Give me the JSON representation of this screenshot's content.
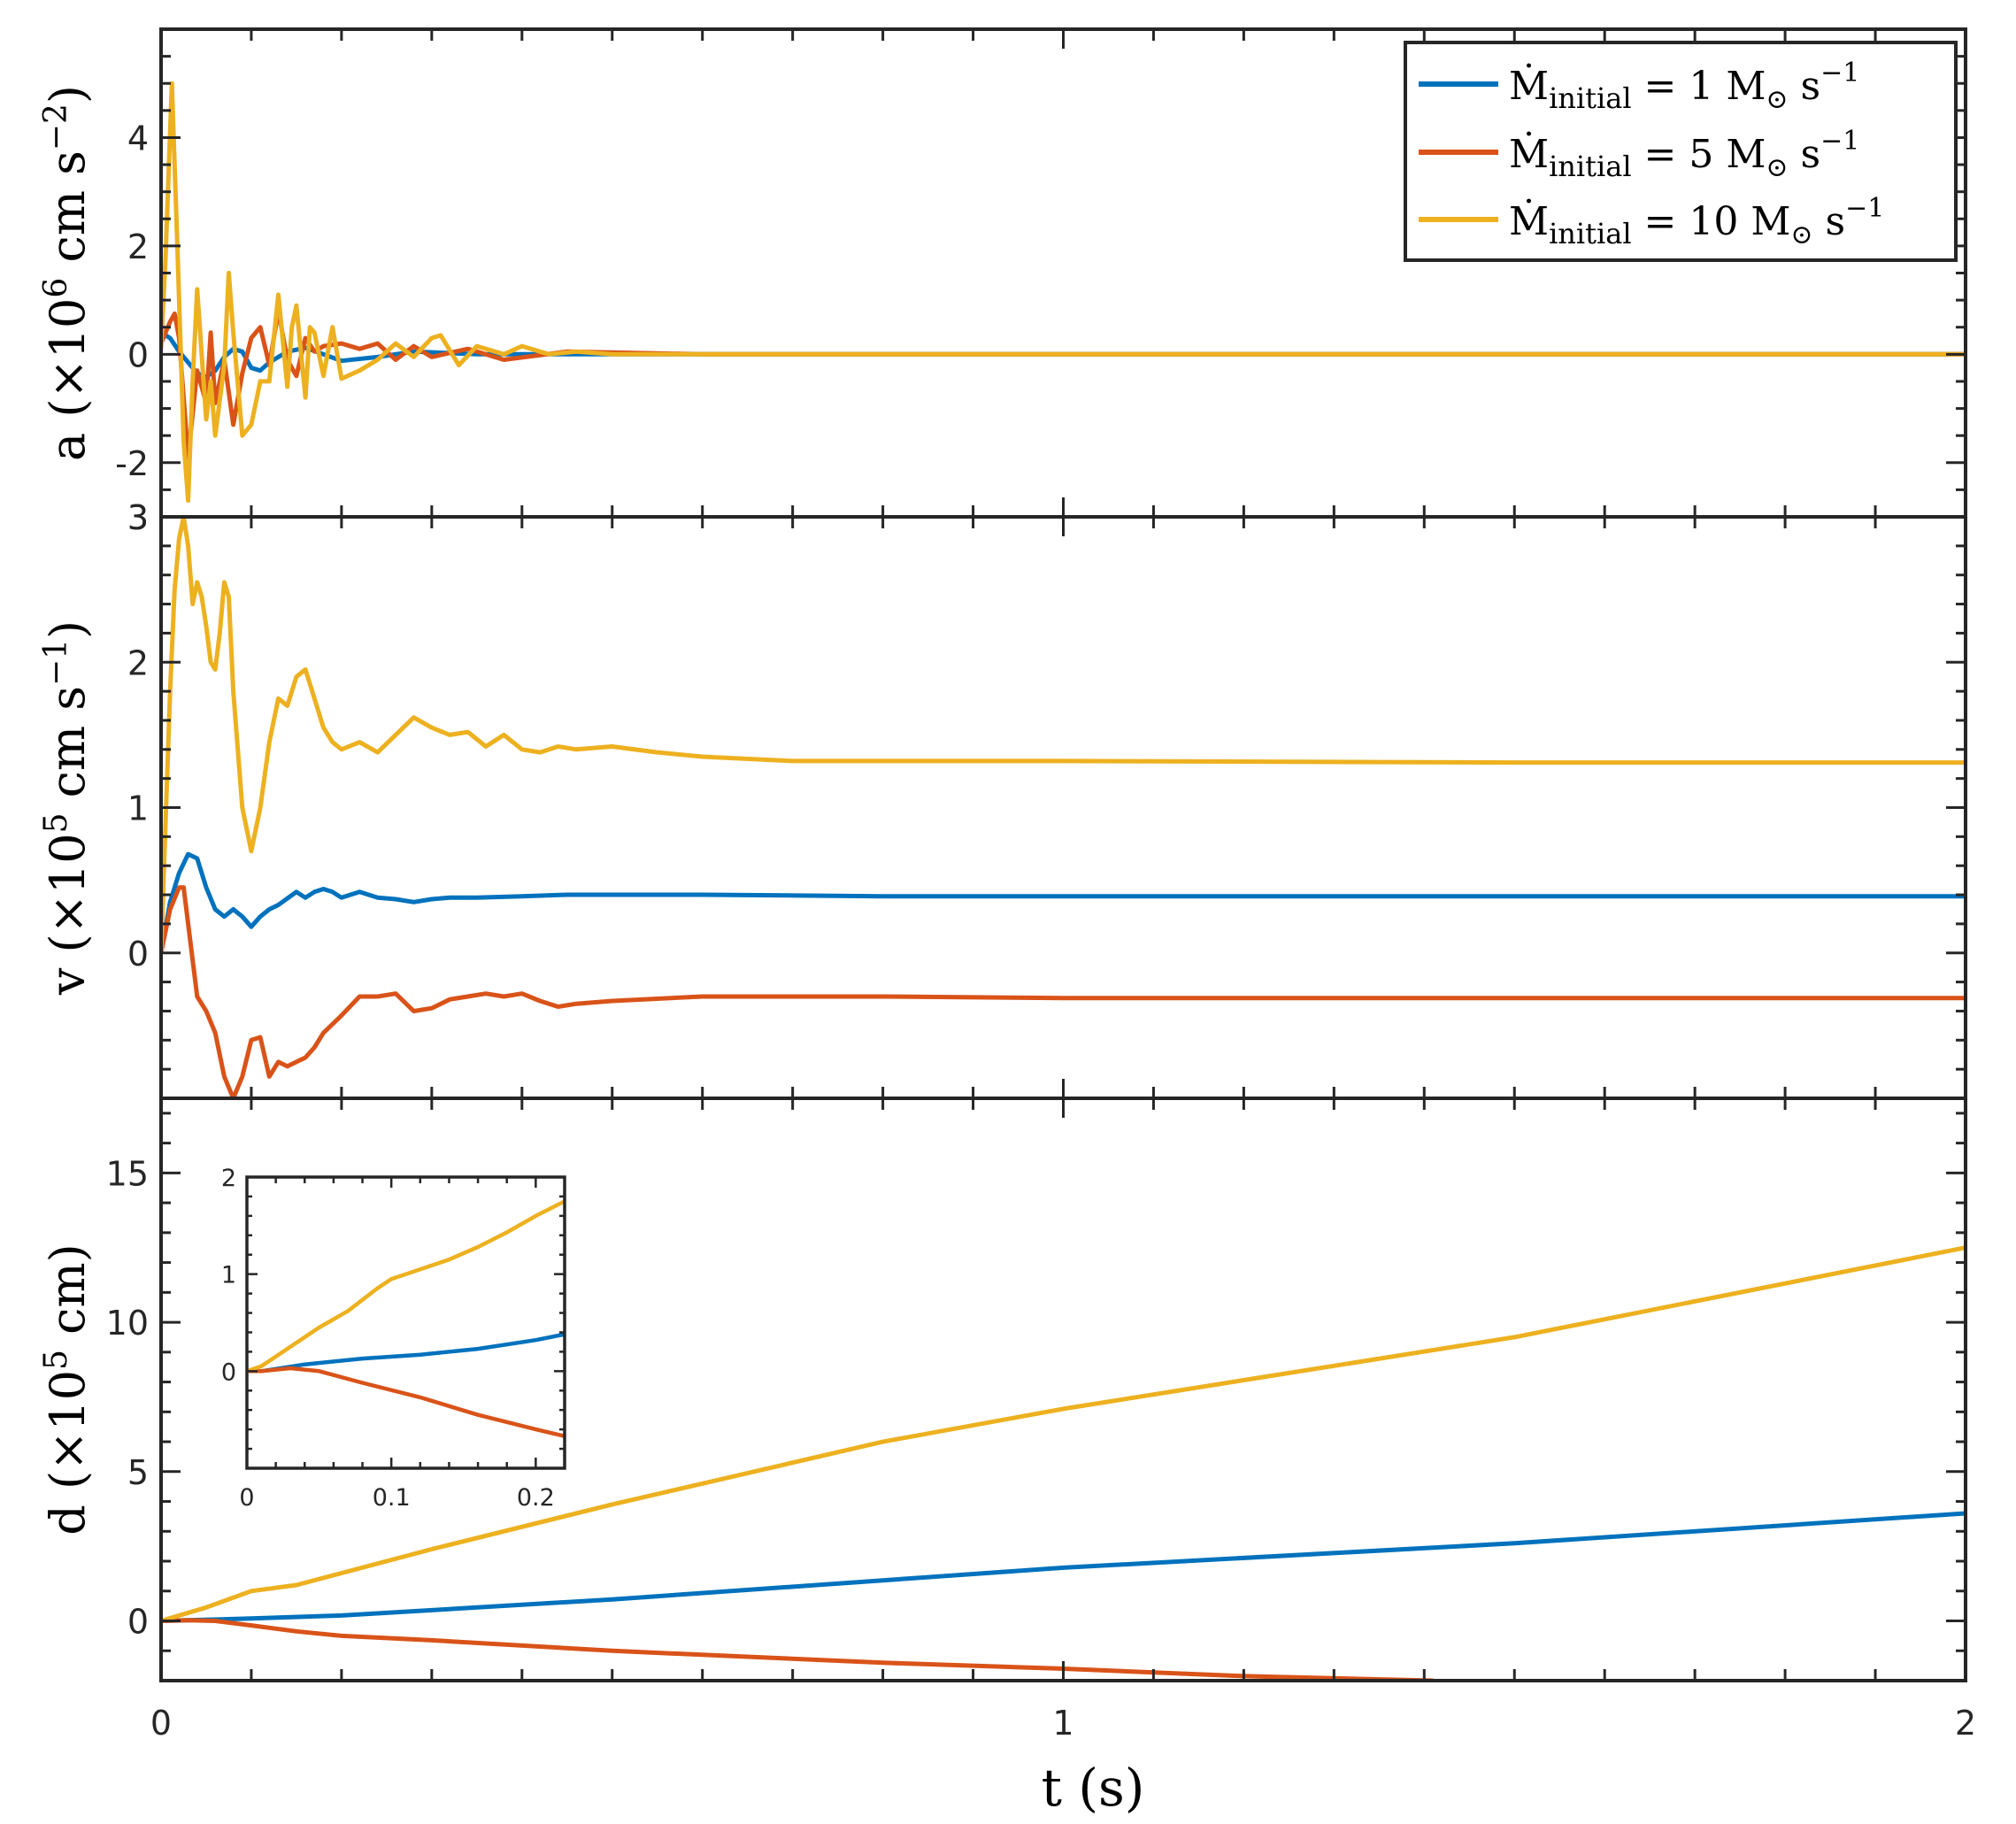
{
  "chart_data": {
    "type": "line",
    "xlabel": "t (s)",
    "xlim": [
      0,
      2
    ],
    "xticks": [
      0,
      1,
      2
    ],
    "x_tick_labels": [
      "0",
      "1",
      "2"
    ],
    "legend": {
      "placement": "top-right of top panel",
      "entries": [
        {
          "prefix": "Ṁ",
          "sub": "initial",
          "text": " = 1 M",
          "sun": "⊙",
          "unit": " s",
          "sup": "−1"
        },
        {
          "prefix": "Ṁ",
          "sub": "initial",
          "text": " = 5 M",
          "sun": "⊙",
          "unit": " s",
          "sup": "−1"
        },
        {
          "prefix": "Ṁ",
          "sub": "initial",
          "text": " = 10 M",
          "sun": "⊙",
          "unit": " s",
          "sup": "−1"
        }
      ]
    },
    "colors": {
      "blue": "#0072BD",
      "red": "#D95319",
      "yellow": "#EDB120",
      "axis": "#262626"
    },
    "panels": [
      {
        "id": "acceleration",
        "ylabel_parts": {
          "pre": "a (×10",
          "sup1": "6",
          "mid": " cm s",
          "sup2": "−2",
          "post": ")"
        },
        "ylim": [
          -3,
          6
        ],
        "yticks": [
          -2,
          0,
          2,
          4
        ],
        "y_tick_labels": [
          "-2",
          "0",
          "2",
          "4"
        ],
        "extra_label": "3",
        "series": [
          {
            "name": "Ṁinitial = 1 M⊙ s−1",
            "color": "#0072BD",
            "x": [
              0,
              0.01,
              0.02,
              0.03,
              0.04,
              0.05,
              0.06,
              0.07,
              0.08,
              0.09,
              0.1,
              0.11,
              0.12,
              0.14,
              0.16,
              0.18,
              0.2,
              0.24,
              0.28,
              0.35,
              0.5,
              1.0,
              2.0
            ],
            "y": [
              0.4,
              0.3,
              0.05,
              -0.15,
              -0.35,
              -0.42,
              -0.3,
              -0.05,
              0.1,
              0.05,
              -0.25,
              -0.3,
              -0.15,
              0.05,
              0.12,
              0.0,
              -0.12,
              -0.05,
              0.05,
              0.0,
              0.0,
              0.0,
              0.0
            ]
          },
          {
            "name": "Ṁinitial = 5 M⊙ s−1",
            "color": "#D95319",
            "x": [
              0,
              0.01,
              0.015,
              0.02,
              0.03,
              0.04,
              0.05,
              0.055,
              0.06,
              0.07,
              0.08,
              0.09,
              0.1,
              0.11,
              0.12,
              0.13,
              0.14,
              0.15,
              0.16,
              0.17,
              0.18,
              0.2,
              0.22,
              0.24,
              0.26,
              0.28,
              0.3,
              0.34,
              0.38,
              0.45,
              0.6,
              1.0,
              2.0
            ],
            "y": [
              0.2,
              0.6,
              0.75,
              0.3,
              -1.9,
              -0.3,
              -0.9,
              0.4,
              -0.9,
              -0.1,
              -1.3,
              -0.35,
              0.3,
              0.5,
              -0.2,
              0.8,
              -0.1,
              -0.4,
              0.3,
              0.05,
              0.15,
              0.2,
              0.1,
              0.2,
              -0.1,
              0.15,
              -0.05,
              0.1,
              -0.1,
              0.05,
              0.0,
              0.0,
              0.0
            ]
          },
          {
            "name": "Ṁinitial = 10 M⊙ s−1",
            "color": "#EDB120",
            "x": [
              0,
              0.005,
              0.012,
              0.018,
              0.025,
              0.03,
              0.035,
              0.04,
              0.05,
              0.055,
              0.06,
              0.07,
              0.075,
              0.08,
              0.09,
              0.1,
              0.11,
              0.12,
              0.13,
              0.14,
              0.145,
              0.15,
              0.16,
              0.165,
              0.17,
              0.18,
              0.19,
              0.2,
              0.22,
              0.24,
              0.26,
              0.28,
              0.3,
              0.31,
              0.33,
              0.35,
              0.38,
              0.4,
              0.43,
              0.46,
              0.5,
              0.6,
              1.0,
              2.0
            ],
            "y": [
              0.1,
              1.8,
              5.0,
              2.0,
              -1.6,
              -2.7,
              -0.5,
              1.2,
              -1.2,
              -0.5,
              -1.5,
              -0.2,
              1.5,
              0.4,
              -1.5,
              -1.3,
              -0.5,
              -0.5,
              1.1,
              -0.6,
              0.5,
              0.9,
              -0.8,
              0.5,
              0.4,
              -0.4,
              0.5,
              -0.45,
              -0.3,
              -0.1,
              0.2,
              -0.05,
              0.3,
              0.35,
              -0.2,
              0.15,
              0.0,
              0.15,
              0.0,
              0.05,
              0.0,
              0.0,
              0.0,
              0.0
            ]
          }
        ]
      },
      {
        "id": "velocity",
        "ylabel_parts": {
          "pre": "v (×10",
          "sup1": "5",
          "mid": " cm s",
          "sup2": "−1",
          "post": ")"
        },
        "ylim": [
          -1,
          3
        ],
        "yticks": [
          0,
          1,
          2,
          3
        ],
        "y_tick_labels": [
          "0",
          "1",
          "2",
          "3"
        ],
        "series": [
          {
            "name": "Ṁinitial = 1 M⊙ s−1",
            "color": "#0072BD",
            "x": [
              0,
              0.01,
              0.02,
              0.03,
              0.04,
              0.05,
              0.06,
              0.07,
              0.08,
              0.09,
              0.1,
              0.11,
              0.12,
              0.13,
              0.15,
              0.16,
              0.17,
              0.18,
              0.19,
              0.2,
              0.22,
              0.24,
              0.26,
              0.28,
              0.3,
              0.32,
              0.35,
              0.4,
              0.45,
              0.5,
              0.6,
              0.8,
              1.0,
              1.5,
              2.0
            ],
            "y": [
              0,
              0.35,
              0.55,
              0.68,
              0.65,
              0.45,
              0.3,
              0.25,
              0.3,
              0.25,
              0.18,
              0.25,
              0.3,
              0.33,
              0.42,
              0.38,
              0.42,
              0.44,
              0.42,
              0.38,
              0.42,
              0.38,
              0.37,
              0.35,
              0.37,
              0.38,
              0.38,
              0.39,
              0.4,
              0.4,
              0.4,
              0.39,
              0.39,
              0.39,
              0.39
            ]
          },
          {
            "name": "Ṁinitial = 5 M⊙ s−1",
            "color": "#D95319",
            "x": [
              0,
              0.01,
              0.02,
              0.025,
              0.03,
              0.04,
              0.05,
              0.06,
              0.07,
              0.08,
              0.09,
              0.1,
              0.11,
              0.12,
              0.13,
              0.14,
              0.15,
              0.16,
              0.17,
              0.18,
              0.2,
              0.22,
              0.24,
              0.26,
              0.28,
              0.3,
              0.32,
              0.34,
              0.36,
              0.38,
              0.4,
              0.42,
              0.44,
              0.46,
              0.5,
              0.6,
              0.8,
              1.0,
              1.5,
              2.0
            ],
            "y": [
              0,
              0.3,
              0.45,
              0.45,
              0.2,
              -0.3,
              -0.4,
              -0.55,
              -0.85,
              -1.0,
              -0.85,
              -0.6,
              -0.58,
              -0.85,
              -0.75,
              -0.78,
              -0.75,
              -0.72,
              -0.65,
              -0.55,
              -0.43,
              -0.3,
              -0.3,
              -0.28,
              -0.4,
              -0.38,
              -0.32,
              -0.3,
              -0.28,
              -0.3,
              -0.28,
              -0.33,
              -0.37,
              -0.35,
              -0.33,
              -0.3,
              -0.3,
              -0.31,
              -0.31,
              -0.31
            ]
          },
          {
            "name": "Ṁinitial = 10 M⊙ s−1",
            "color": "#EDB120",
            "x": [
              0,
              0.005,
              0.01,
              0.015,
              0.02,
              0.025,
              0.03,
              0.035,
              0.04,
              0.045,
              0.05,
              0.055,
              0.06,
              0.065,
              0.07,
              0.075,
              0.08,
              0.09,
              0.1,
              0.11,
              0.12,
              0.13,
              0.14,
              0.15,
              0.16,
              0.17,
              0.18,
              0.19,
              0.2,
              0.22,
              0.24,
              0.26,
              0.28,
              0.3,
              0.32,
              0.34,
              0.36,
              0.38,
              0.4,
              0.42,
              0.44,
              0.46,
              0.5,
              0.55,
              0.6,
              0.7,
              0.8,
              1.0,
              1.5,
              2.0
            ],
            "y": [
              0,
              0.9,
              1.8,
              2.5,
              2.85,
              3.0,
              2.8,
              2.4,
              2.55,
              2.45,
              2.25,
              2.0,
              1.95,
              2.2,
              2.55,
              2.45,
              1.8,
              1.0,
              0.7,
              1.0,
              1.45,
              1.75,
              1.7,
              1.9,
              1.95,
              1.75,
              1.55,
              1.45,
              1.4,
              1.45,
              1.38,
              1.5,
              1.62,
              1.55,
              1.5,
              1.52,
              1.42,
              1.5,
              1.4,
              1.38,
              1.42,
              1.4,
              1.42,
              1.38,
              1.35,
              1.32,
              1.32,
              1.32,
              1.31,
              1.31
            ]
          }
        ]
      },
      {
        "id": "displacement",
        "ylabel_parts": {
          "pre": "d (×10",
          "sup1": "5",
          "mid": " cm",
          "sup2": "",
          "post": ")"
        },
        "ylim": [
          -2,
          17.5
        ],
        "yticks": [
          0,
          5,
          10,
          15
        ],
        "y_tick_labels": [
          "0",
          "5",
          "10",
          "15"
        ],
        "series": [
          {
            "name": "Ṁinitial = 1 M⊙ s−1",
            "color": "#0072BD",
            "x": [
              0,
              0.1,
              0.2,
              0.5,
              1.0,
              1.5,
              2.0
            ],
            "y": [
              0,
              0.08,
              0.18,
              0.72,
              1.78,
              2.6,
              3.6
            ]
          },
          {
            "name": "Ṁinitial = 5 M⊙ s−1",
            "color": "#D95319",
            "x": [
              0,
              0.03,
              0.06,
              0.1,
              0.15,
              0.2,
              0.3,
              0.5,
              0.8,
              1.0,
              1.2,
              1.41
            ],
            "y": [
              0,
              0.02,
              0.0,
              -0.15,
              -0.35,
              -0.5,
              -0.65,
              -1.0,
              -1.4,
              -1.6,
              -1.85,
              -2.0
            ]
          },
          {
            "name": "Ṁinitial = 10 M⊙ s−1",
            "color": "#EDB120",
            "x": [
              0,
              0.05,
              0.1,
              0.15,
              0.2,
              0.3,
              0.5,
              0.8,
              1.0,
              1.5,
              2.0
            ],
            "y": [
              0,
              0.45,
              1.0,
              1.2,
              1.6,
              2.4,
              3.9,
              6.0,
              7.1,
              9.5,
              12.5
            ]
          }
        ],
        "inset": {
          "xlim": [
            0,
            0.22
          ],
          "ylim": [
            -1,
            2
          ],
          "xticks": [
            0,
            0.1,
            0.2
          ],
          "x_tick_labels": [
            "0",
            "0.1",
            "0.2"
          ],
          "yticks": [
            0,
            1,
            2
          ],
          "y_tick_labels": [
            "0",
            "1",
            "2"
          ],
          "series": [
            {
              "color": "#0072BD",
              "x": [
                0,
                0.01,
                0.04,
                0.08,
                0.12,
                0.16,
                0.2,
                0.22
              ],
              "y": [
                0,
                0.0,
                0.07,
                0.13,
                0.17,
                0.23,
                0.32,
                0.38
              ]
            },
            {
              "color": "#D95319",
              "x": [
                0,
                0.01,
                0.03,
                0.05,
                0.08,
                0.12,
                0.16,
                0.2,
                0.22
              ],
              "y": [
                0,
                0.0,
                0.03,
                0.0,
                -0.12,
                -0.27,
                -0.45,
                -0.6,
                -0.67
              ]
            },
            {
              "color": "#EDB120",
              "x": [
                0,
                0.01,
                0.03,
                0.05,
                0.07,
                0.09,
                0.1,
                0.12,
                0.14,
                0.16,
                0.18,
                0.2,
                0.22
              ],
              "y": [
                0,
                0.05,
                0.25,
                0.45,
                0.62,
                0.85,
                0.95,
                1.05,
                1.15,
                1.28,
                1.43,
                1.6,
                1.75
              ]
            }
          ]
        }
      }
    ]
  }
}
